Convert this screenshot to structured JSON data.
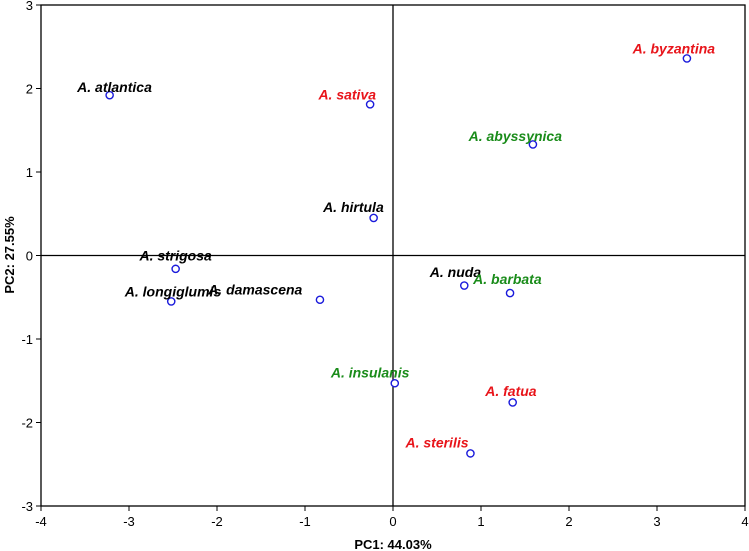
{
  "chart_data": {
    "type": "scatter",
    "title": "",
    "xlabel": "PC1: 44.03%",
    "ylabel": "PC2: 27.55%",
    "xlim": [
      -4,
      4
    ],
    "ylim": [
      -3,
      3
    ],
    "xticks": [
      -4,
      -3,
      -2,
      -1,
      0,
      1,
      2,
      3,
      4
    ],
    "yticks": [
      -3,
      -2,
      -1,
      0,
      1,
      2,
      3
    ],
    "grid": false,
    "zero_lines": true,
    "marker": {
      "shape": "open-circle",
      "color": "#1a1adb"
    },
    "colors": {
      "black": "#000000",
      "red": "#e8141a",
      "green": "#1a8c1a"
    },
    "points": [
      {
        "label": "A. atlantica",
        "x": -3.22,
        "y": 1.92,
        "color": "black",
        "anchor": "end",
        "dx": 0.48,
        "dy": 0.04
      },
      {
        "label": "A. strigosa",
        "x": -2.47,
        "y": -0.16,
        "color": "black",
        "anchor": "middle",
        "dx": 0.0,
        "dy": 0.1
      },
      {
        "label": "A. longiglumis",
        "x": -2.52,
        "y": -0.55,
        "color": "black",
        "anchor": "middle",
        "dx": 0.02,
        "dy": 0.06
      },
      {
        "label": "A. damascena",
        "x": -0.83,
        "y": -0.53,
        "color": "black",
        "anchor": "end",
        "dx": -0.2,
        "dy": 0.06
      },
      {
        "label": "A. sativa",
        "x": -0.26,
        "y": 1.81,
        "color": "red",
        "anchor": "middle",
        "dx": -0.26,
        "dy": 0.06
      },
      {
        "label": "A. hirtula",
        "x": -0.22,
        "y": 0.45,
        "color": "black",
        "anchor": "middle",
        "dx": -0.23,
        "dy": 0.07
      },
      {
        "label": "A. nuda",
        "x": 0.81,
        "y": -0.36,
        "color": "black",
        "anchor": "middle",
        "dx": -0.1,
        "dy": 0.1
      },
      {
        "label": "A. barbata",
        "x": 1.33,
        "y": -0.45,
        "color": "green",
        "anchor": "middle",
        "dx": -0.03,
        "dy": 0.11
      },
      {
        "label": "A. abyssynica",
        "x": 1.59,
        "y": 1.33,
        "color": "green",
        "anchor": "middle",
        "dx": -0.2,
        "dy": 0.04
      },
      {
        "label": "A. byzantina",
        "x": 3.34,
        "y": 2.36,
        "color": "red",
        "anchor": "end",
        "dx": 0.32,
        "dy": 0.06
      },
      {
        "label": "A. insulanis",
        "x": 0.02,
        "y": -1.53,
        "color": "green",
        "anchor": "middle",
        "dx": -0.28,
        "dy": 0.07
      },
      {
        "label": "A. fatua",
        "x": 1.36,
        "y": -1.76,
        "color": "red",
        "anchor": "middle",
        "dx": -0.02,
        "dy": 0.08
      },
      {
        "label": "A. sterilis",
        "x": 0.88,
        "y": -2.37,
        "color": "red",
        "anchor": "middle",
        "dx": -0.38,
        "dy": 0.07
      }
    ]
  }
}
